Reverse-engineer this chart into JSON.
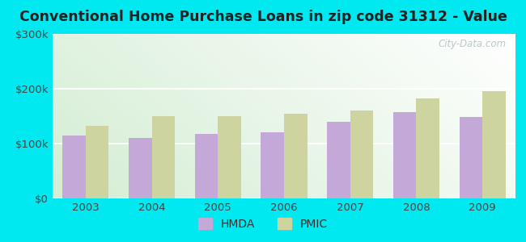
{
  "title": "Conventional Home Purchase Loans in zip code 31312 - Value",
  "years": [
    2003,
    2004,
    2005,
    2006,
    2007,
    2008,
    2009
  ],
  "hmda_values": [
    115000,
    110000,
    118000,
    120000,
    140000,
    158000,
    148000
  ],
  "pmic_values": [
    132000,
    150000,
    150000,
    155000,
    160000,
    182000,
    195000
  ],
  "hmda_color": "#c4a8d8",
  "pmic_color": "#cdd4a0",
  "outer_bg": "#00e8f0",
  "grad_color_topleft": "#c8e8c8",
  "grad_color_topright": "#e8f4e8",
  "grad_color_bottom": "#f0faf0",
  "ylim": [
    0,
    300000
  ],
  "yticks": [
    0,
    100000,
    200000,
    300000
  ],
  "ytick_labels": [
    "$0",
    "$100k",
    "$200k",
    "$300k"
  ],
  "bar_width": 0.35,
  "title_fontsize": 12.5,
  "tick_fontsize": 9.5,
  "tick_color": "#444444",
  "legend_labels": [
    "HMDA",
    "PMIC"
  ],
  "watermark": "City-Data.com",
  "watermark_color": "#b0bec5"
}
